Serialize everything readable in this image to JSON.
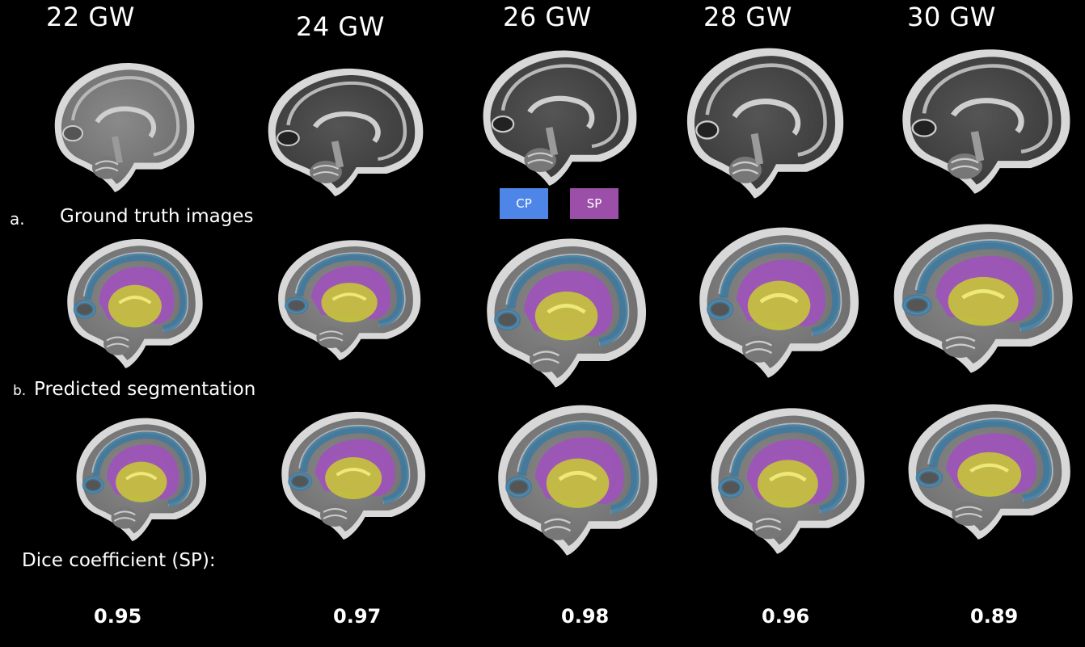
{
  "columns": [
    {
      "age": "22 GW",
      "dice": "0.95"
    },
    {
      "age": "24 GW",
      "dice": "0.97"
    },
    {
      "age": "26 GW",
      "dice": "0.98"
    },
    {
      "age": "28 GW",
      "dice": "0.96"
    },
    {
      "age": "30 GW",
      "dice": "0.89"
    }
  ],
  "legend": [
    {
      "label": "CP",
      "color": "#4e86e8"
    },
    {
      "label": "SP",
      "color": "#9b4fa8"
    }
  ],
  "rows": {
    "a_marker": "a.",
    "a_label": "Ground truth images",
    "b_marker": "b.",
    "b_label": "Predicted segmentation"
  },
  "dice_label": "Dice coefficient (SP):",
  "overlay_colors": {
    "cp": "#3d7aa0",
    "sp": "#a14fc0",
    "deep": "#c8c43a"
  }
}
